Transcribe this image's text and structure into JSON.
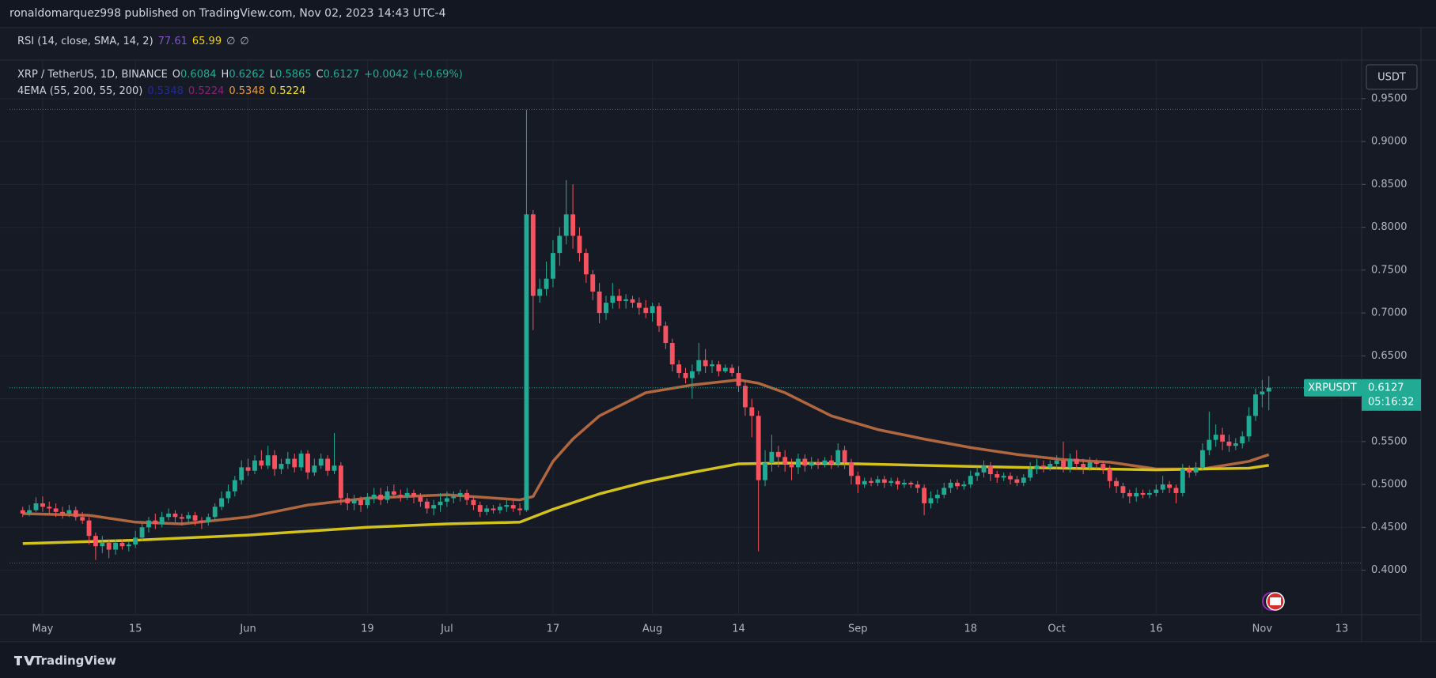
{
  "header": {
    "publisher": "ronaldomarquez998 published on TradingView.com, Nov 02, 2023 14:43 UTC-4"
  },
  "rsi_legend": {
    "title": "RSI (14, close, SMA, 14, 2)",
    "values": [
      {
        "text": 77.61,
        "color": "#7e57c2"
      },
      {
        "text": 65.99,
        "color": "#f5d400"
      },
      {
        "text": "∅",
        "color": "#b2b5be"
      },
      {
        "text": "∅",
        "color": "#b2b5be"
      }
    ]
  },
  "chart_data": {
    "type": "candlestick",
    "title": "XRP / TetherUS, 1D, BINANCE",
    "ohlc_legend": {
      "labels": [
        "O",
        "H",
        "L",
        "C"
      ],
      "values": [
        0.6084,
        0.6262,
        0.5865,
        0.6127
      ],
      "change": "+0.0042",
      "change_pct": "(+0.69%)"
    },
    "indicator": {
      "title": "4EMA (55, 200, 55, 200)",
      "values": [
        {
          "value": 0.5348,
          "color": "#1f2a9e"
        },
        {
          "value": 0.5224,
          "color": "#88237a"
        },
        {
          "value": 0.5348,
          "color": "#f39a2e"
        },
        {
          "value": 0.5224,
          "color": "#f5e61c"
        }
      ]
    },
    "currency": "USDT",
    "symbol_label": "XRPUSDT",
    "last_price": 0.6127,
    "countdown": "05:16:32",
    "up_color": "#22ab94",
    "down_color": "#f7525f",
    "grid": true,
    "x": [
      "2023-04-28",
      "2023-04-29",
      "2023-04-30",
      "2023-05-01",
      "2023-05-02",
      "2023-05-03",
      "2023-05-04",
      "2023-05-05",
      "2023-05-06",
      "2023-05-07",
      "2023-05-08",
      "2023-05-09",
      "2023-05-10",
      "2023-05-11",
      "2023-05-12",
      "2023-05-13",
      "2023-05-14",
      "2023-05-15",
      "2023-05-16",
      "2023-05-17",
      "2023-05-18",
      "2023-05-19",
      "2023-05-20",
      "2023-05-21",
      "2023-05-22",
      "2023-05-23",
      "2023-05-24",
      "2023-05-25",
      "2023-05-26",
      "2023-05-27",
      "2023-05-28",
      "2023-05-29",
      "2023-05-30",
      "2023-05-31",
      "2023-06-01",
      "2023-06-02",
      "2023-06-03",
      "2023-06-04",
      "2023-06-05",
      "2023-06-06",
      "2023-06-07",
      "2023-06-08",
      "2023-06-09",
      "2023-06-10",
      "2023-06-11",
      "2023-06-12",
      "2023-06-13",
      "2023-06-14",
      "2023-06-15",
      "2023-06-16",
      "2023-06-17",
      "2023-06-18",
      "2023-06-19",
      "2023-06-20",
      "2023-06-21",
      "2023-06-22",
      "2023-06-23",
      "2023-06-24",
      "2023-06-25",
      "2023-06-26",
      "2023-06-27",
      "2023-06-28",
      "2023-06-29",
      "2023-06-30",
      "2023-07-01",
      "2023-07-02",
      "2023-07-03",
      "2023-07-04",
      "2023-07-05",
      "2023-07-06",
      "2023-07-07",
      "2023-07-08",
      "2023-07-09",
      "2023-07-10",
      "2023-07-11",
      "2023-07-12",
      "2023-07-13",
      "2023-07-14",
      "2023-07-15",
      "2023-07-16",
      "2023-07-17",
      "2023-07-18",
      "2023-07-19",
      "2023-07-20",
      "2023-07-21",
      "2023-07-22",
      "2023-07-23",
      "2023-07-24",
      "2023-07-25",
      "2023-07-26",
      "2023-07-27",
      "2023-07-28",
      "2023-07-29",
      "2023-07-30",
      "2023-07-31",
      "2023-08-01",
      "2023-08-02",
      "2023-08-03",
      "2023-08-04",
      "2023-08-05",
      "2023-08-06",
      "2023-08-07",
      "2023-08-08",
      "2023-08-09",
      "2023-08-10",
      "2023-08-11",
      "2023-08-12",
      "2023-08-13",
      "2023-08-14",
      "2023-08-15",
      "2023-08-16",
      "2023-08-17",
      "2023-08-18",
      "2023-08-19",
      "2023-08-20",
      "2023-08-21",
      "2023-08-22",
      "2023-08-23",
      "2023-08-24",
      "2023-08-25",
      "2023-08-26",
      "2023-08-27",
      "2023-08-28",
      "2023-08-29",
      "2023-08-30",
      "2023-08-31",
      "2023-09-01",
      "2023-09-02",
      "2023-09-03",
      "2023-09-04",
      "2023-09-05",
      "2023-09-06",
      "2023-09-07",
      "2023-09-08",
      "2023-09-09",
      "2023-09-10",
      "2023-09-11",
      "2023-09-12",
      "2023-09-13",
      "2023-09-14",
      "2023-09-15",
      "2023-09-16",
      "2023-09-17",
      "2023-09-18",
      "2023-09-19",
      "2023-09-20",
      "2023-09-21",
      "2023-09-22",
      "2023-09-23",
      "2023-09-24",
      "2023-09-25",
      "2023-09-26",
      "2023-09-27",
      "2023-09-28",
      "2023-09-29",
      "2023-09-30",
      "2023-10-01",
      "2023-10-02",
      "2023-10-03",
      "2023-10-04",
      "2023-10-05",
      "2023-10-06",
      "2023-10-07",
      "2023-10-08",
      "2023-10-09",
      "2023-10-10",
      "2023-10-11",
      "2023-10-12",
      "2023-10-13",
      "2023-10-14",
      "2023-10-15",
      "2023-10-16",
      "2023-10-17",
      "2023-10-18",
      "2023-10-19",
      "2023-10-20",
      "2023-10-21",
      "2023-10-22",
      "2023-10-23",
      "2023-10-24",
      "2023-10-25",
      "2023-10-26",
      "2023-10-27",
      "2023-10-28",
      "2023-10-29",
      "2023-10-30",
      "2023-10-31",
      "2023-11-01",
      "2023-11-02"
    ],
    "open": [
      0.47,
      0.466,
      0.47,
      0.478,
      0.474,
      0.472,
      0.468,
      0.466,
      0.47,
      0.462,
      0.458,
      0.44,
      0.428,
      0.432,
      0.424,
      0.432,
      0.428,
      0.43,
      0.438,
      0.45,
      0.458,
      0.454,
      0.462,
      0.466,
      0.462,
      0.46,
      0.464,
      0.458,
      0.456,
      0.462,
      0.474,
      0.484,
      0.492,
      0.505,
      0.52,
      0.516,
      0.528,
      0.522,
      0.534,
      0.518,
      0.524,
      0.53,
      0.52,
      0.536,
      0.514,
      0.522,
      0.53,
      0.516,
      0.522,
      0.484,
      0.478,
      0.482,
      0.476,
      0.484,
      0.488,
      0.482,
      0.492,
      0.488,
      0.486,
      0.49,
      0.486,
      0.48,
      0.472,
      0.476,
      0.48,
      0.484,
      0.486,
      0.49,
      0.482,
      0.476,
      0.468,
      0.472,
      0.47,
      0.474,
      0.476,
      0.472,
      0.47,
      0.815,
      0.72,
      0.728,
      0.74,
      0.77,
      0.79,
      0.815,
      0.79,
      0.77,
      0.745,
      0.725,
      0.7,
      0.712,
      0.72,
      0.714,
      0.716,
      0.712,
      0.706,
      0.7,
      0.708,
      0.685,
      0.665,
      0.64,
      0.63,
      0.624,
      0.632,
      0.645,
      0.638,
      0.64,
      0.632,
      0.636,
      0.63,
      0.615,
      0.59,
      0.58,
      0.505,
      0.525,
      0.538,
      0.532,
      0.524,
      0.52,
      0.53,
      0.522,
      0.526,
      0.524,
      0.528,
      0.524,
      0.54,
      0.526,
      0.51,
      0.5,
      0.504,
      0.502,
      0.506,
      0.502,
      0.504,
      0.5,
      0.502,
      0.5,
      0.496,
      0.478,
      0.484,
      0.488,
      0.496,
      0.502,
      0.498,
      0.5,
      0.51,
      0.514,
      0.522,
      0.512,
      0.508,
      0.51,
      0.506,
      0.502,
      0.508,
      0.518,
      0.522,
      0.52,
      0.524,
      0.528,
      0.52,
      0.53,
      0.524,
      0.52,
      0.526,
      0.524,
      0.518,
      0.504,
      0.498,
      0.49,
      0.486,
      0.49,
      0.488,
      0.49,
      0.494,
      0.5,
      0.496,
      0.49,
      0.518,
      0.514,
      0.52,
      0.54,
      0.552,
      0.558,
      0.55,
      0.545,
      0.548,
      0.556,
      0.58,
      0.605,
      0.6084
    ],
    "high": [
      0.474,
      0.476,
      0.485,
      0.486,
      0.48,
      0.478,
      0.474,
      0.476,
      0.474,
      0.468,
      0.462,
      0.444,
      0.44,
      0.436,
      0.436,
      0.436,
      0.434,
      0.446,
      0.455,
      0.462,
      0.466,
      0.468,
      0.472,
      0.47,
      0.466,
      0.468,
      0.468,
      0.462,
      0.466,
      0.478,
      0.492,
      0.5,
      0.51,
      0.528,
      0.53,
      0.534,
      0.54,
      0.545,
      0.54,
      0.53,
      0.538,
      0.536,
      0.54,
      0.54,
      0.53,
      0.536,
      0.534,
      0.56,
      0.526,
      0.49,
      0.488,
      0.486,
      0.49,
      0.496,
      0.496,
      0.498,
      0.5,
      0.494,
      0.496,
      0.494,
      0.49,
      0.484,
      0.482,
      0.49,
      0.492,
      0.492,
      0.494,
      0.494,
      0.486,
      0.48,
      0.476,
      0.476,
      0.478,
      0.482,
      0.482,
      0.478,
      0.937,
      0.82,
      0.74,
      0.76,
      0.785,
      0.8,
      0.855,
      0.85,
      0.8,
      0.775,
      0.75,
      0.735,
      0.72,
      0.735,
      0.728,
      0.722,
      0.72,
      0.718,
      0.715,
      0.712,
      0.712,
      0.69,
      0.67,
      0.645,
      0.636,
      0.64,
      0.665,
      0.658,
      0.645,
      0.644,
      0.64,
      0.64,
      0.638,
      0.62,
      0.6,
      0.586,
      0.54,
      0.558,
      0.545,
      0.54,
      0.53,
      0.536,
      0.535,
      0.532,
      0.53,
      0.532,
      0.534,
      0.548,
      0.545,
      0.53,
      0.515,
      0.508,
      0.508,
      0.51,
      0.51,
      0.508,
      0.508,
      0.506,
      0.504,
      0.504,
      0.5,
      0.492,
      0.494,
      0.502,
      0.506,
      0.506,
      0.504,
      0.516,
      0.52,
      0.528,
      0.526,
      0.516,
      0.514,
      0.514,
      0.51,
      0.512,
      0.526,
      0.53,
      0.528,
      0.528,
      0.534,
      0.55,
      0.536,
      0.54,
      0.53,
      0.532,
      0.53,
      0.528,
      0.522,
      0.508,
      0.502,
      0.494,
      0.496,
      0.494,
      0.494,
      0.5,
      0.51,
      0.504,
      0.5,
      0.524,
      0.522,
      0.526,
      0.548,
      0.585,
      0.57,
      0.566,
      0.558,
      0.554,
      0.562,
      0.59,
      0.612,
      0.622,
      0.6262
    ],
    "low": [
      0.462,
      0.463,
      0.468,
      0.468,
      0.466,
      0.462,
      0.46,
      0.462,
      0.458,
      0.454,
      0.43,
      0.412,
      0.42,
      0.414,
      0.418,
      0.424,
      0.422,
      0.426,
      0.434,
      0.444,
      0.448,
      0.45,
      0.458,
      0.456,
      0.452,
      0.456,
      0.452,
      0.448,
      0.452,
      0.458,
      0.47,
      0.478,
      0.486,
      0.5,
      0.51,
      0.512,
      0.518,
      0.518,
      0.51,
      0.512,
      0.518,
      0.514,
      0.516,
      0.506,
      0.51,
      0.518,
      0.51,
      0.512,
      0.476,
      0.47,
      0.47,
      0.468,
      0.472,
      0.478,
      0.476,
      0.478,
      0.484,
      0.48,
      0.482,
      0.478,
      0.474,
      0.466,
      0.464,
      0.468,
      0.474,
      0.478,
      0.48,
      0.476,
      0.47,
      0.462,
      0.464,
      0.466,
      0.466,
      0.468,
      0.468,
      0.464,
      0.468,
      0.68,
      0.712,
      0.72,
      0.73,
      0.755,
      0.78,
      0.775,
      0.76,
      0.735,
      0.715,
      0.688,
      0.692,
      0.705,
      0.705,
      0.705,
      0.706,
      0.698,
      0.694,
      0.69,
      0.678,
      0.658,
      0.632,
      0.624,
      0.618,
      0.6,
      0.628,
      0.63,
      0.63,
      0.626,
      0.63,
      0.626,
      0.608,
      0.58,
      0.555,
      0.422,
      0.498,
      0.515,
      0.52,
      0.515,
      0.505,
      0.512,
      0.515,
      0.518,
      0.518,
      0.52,
      0.518,
      0.52,
      0.518,
      0.5,
      0.49,
      0.496,
      0.498,
      0.498,
      0.496,
      0.498,
      0.494,
      0.496,
      0.496,
      0.49,
      0.464,
      0.472,
      0.478,
      0.484,
      0.49,
      0.494,
      0.494,
      0.496,
      0.504,
      0.508,
      0.504,
      0.502,
      0.504,
      0.5,
      0.498,
      0.498,
      0.504,
      0.512,
      0.514,
      0.516,
      0.518,
      0.514,
      0.514,
      0.518,
      0.512,
      0.516,
      0.518,
      0.512,
      0.496,
      0.49,
      0.484,
      0.478,
      0.48,
      0.484,
      0.484,
      0.486,
      0.49,
      0.49,
      0.478,
      0.486,
      0.508,
      0.51,
      0.516,
      0.534,
      0.544,
      0.54,
      0.538,
      0.54,
      0.542,
      0.55,
      0.574,
      0.59,
      0.5865
    ],
    "close": [
      0.466,
      0.47,
      0.478,
      0.474,
      0.472,
      0.468,
      0.466,
      0.47,
      0.462,
      0.458,
      0.44,
      0.428,
      0.432,
      0.424,
      0.432,
      0.428,
      0.43,
      0.438,
      0.45,
      0.458,
      0.454,
      0.462,
      0.466,
      0.462,
      0.46,
      0.464,
      0.458,
      0.456,
      0.462,
      0.474,
      0.484,
      0.492,
      0.505,
      0.52,
      0.516,
      0.528,
      0.522,
      0.534,
      0.518,
      0.524,
      0.53,
      0.52,
      0.536,
      0.514,
      0.522,
      0.53,
      0.516,
      0.522,
      0.484,
      0.478,
      0.482,
      0.476,
      0.484,
      0.488,
      0.482,
      0.492,
      0.488,
      0.486,
      0.49,
      0.486,
      0.48,
      0.472,
      0.476,
      0.48,
      0.484,
      0.486,
      0.49,
      0.482,
      0.476,
      0.468,
      0.472,
      0.47,
      0.474,
      0.476,
      0.472,
      0.47,
      0.815,
      0.72,
      0.728,
      0.74,
      0.77,
      0.79,
      0.815,
      0.79,
      0.77,
      0.745,
      0.725,
      0.7,
      0.712,
      0.72,
      0.714,
      0.716,
      0.712,
      0.706,
      0.7,
      0.708,
      0.685,
      0.665,
      0.64,
      0.63,
      0.624,
      0.632,
      0.645,
      0.638,
      0.64,
      0.632,
      0.636,
      0.63,
      0.615,
      0.59,
      0.58,
      0.505,
      0.525,
      0.538,
      0.532,
      0.524,
      0.52,
      0.53,
      0.522,
      0.526,
      0.524,
      0.528,
      0.524,
      0.54,
      0.526,
      0.51,
      0.5,
      0.504,
      0.502,
      0.506,
      0.502,
      0.504,
      0.5,
      0.502,
      0.5,
      0.496,
      0.478,
      0.484,
      0.488,
      0.496,
      0.502,
      0.498,
      0.5,
      0.51,
      0.514,
      0.522,
      0.512,
      0.508,
      0.51,
      0.506,
      0.502,
      0.508,
      0.518,
      0.522,
      0.52,
      0.524,
      0.528,
      0.52,
      0.53,
      0.524,
      0.52,
      0.526,
      0.524,
      0.518,
      0.504,
      0.498,
      0.49,
      0.486,
      0.49,
      0.488,
      0.49,
      0.494,
      0.5,
      0.496,
      0.49,
      0.518,
      0.514,
      0.52,
      0.54,
      0.552,
      0.558,
      0.55,
      0.545,
      0.548,
      0.556,
      0.58,
      0.605,
      0.6084,
      0.6127
    ],
    "ema_series": [
      {
        "color": "#b0673f",
        "x": [
          "2023-04-28",
          "2023-05-08",
          "2023-05-15",
          "2023-05-22",
          "2023-06-01",
          "2023-06-10",
          "2023-06-19",
          "2023-07-01",
          "2023-07-12",
          "2023-07-14",
          "2023-07-17",
          "2023-07-20",
          "2023-07-24",
          "2023-07-31",
          "2023-08-07",
          "2023-08-14",
          "2023-08-17",
          "2023-08-21",
          "2023-08-28",
          "2023-09-04",
          "2023-09-11",
          "2023-09-18",
          "2023-09-25",
          "2023-10-02",
          "2023-10-09",
          "2023-10-16",
          "2023-10-23",
          "2023-10-30",
          "2023-11-02"
        ],
        "values": [
          0.466,
          0.464,
          0.456,
          0.454,
          0.462,
          0.476,
          0.484,
          0.488,
          0.482,
          0.486,
          0.527,
          0.553,
          0.58,
          0.607,
          0.616,
          0.622,
          0.618,
          0.607,
          0.58,
          0.564,
          0.553,
          0.543,
          0.535,
          0.529,
          0.526,
          0.518,
          0.518,
          0.527,
          0.5348
        ]
      },
      {
        "color": "#d4c21c",
        "x": [
          "2023-04-28",
          "2023-05-15",
          "2023-06-01",
          "2023-06-19",
          "2023-07-01",
          "2023-07-12",
          "2023-07-17",
          "2023-07-24",
          "2023-07-31",
          "2023-08-07",
          "2023-08-14",
          "2023-08-21",
          "2023-09-01",
          "2023-09-18",
          "2023-10-02",
          "2023-10-16",
          "2023-10-23",
          "2023-10-30",
          "2023-11-02"
        ],
        "values": [
          0.431,
          0.435,
          0.441,
          0.45,
          0.454,
          0.456,
          0.471,
          0.489,
          0.503,
          0.514,
          0.524,
          0.525,
          0.524,
          0.521,
          0.519,
          0.517,
          0.518,
          0.519,
          0.5224
        ]
      }
    ],
    "range_lines": [
      0.9375,
      0.4085
    ],
    "xlim": [
      "2023-04-26",
      "2023-11-16"
    ],
    "xticks": [
      {
        "value": "2023-05-01",
        "label": "May"
      },
      {
        "value": "2023-05-15",
        "label": "15"
      },
      {
        "value": "2023-06-01",
        "label": "Jun"
      },
      {
        "value": "2023-06-19",
        "label": "19"
      },
      {
        "value": "2023-07-01",
        "label": "Jul"
      },
      {
        "value": "2023-07-17",
        "label": "17"
      },
      {
        "value": "2023-08-01",
        "label": "Aug"
      },
      {
        "value": "2023-08-14",
        "label": "14"
      },
      {
        "value": "2023-09-01",
        "label": "Sep"
      },
      {
        "value": "2023-09-18",
        "label": "18"
      },
      {
        "value": "2023-10-01",
        "label": "Oct"
      },
      {
        "value": "2023-10-16",
        "label": "16"
      },
      {
        "value": "2023-11-01",
        "label": "Nov"
      },
      {
        "value": "2023-11-13",
        "label": "13"
      }
    ],
    "ylim": [
      0.348,
      0.995
    ],
    "yticks": [
      {
        "value": 0.4,
        "label": "0.4000"
      },
      {
        "value": 0.45,
        "label": "0.4500"
      },
      {
        "value": 0.5,
        "label": "0.5000"
      },
      {
        "value": 0.55,
        "label": "0.5500"
      },
      {
        "value": 0.6,
        "label": "0.6000"
      },
      {
        "value": 0.65,
        "label": "0.6500"
      },
      {
        "value": 0.7,
        "label": "0.7000"
      },
      {
        "value": 0.75,
        "label": "0.7500"
      },
      {
        "value": 0.8,
        "label": "0.8000"
      },
      {
        "value": 0.85,
        "label": "0.8500"
      },
      {
        "value": 0.9,
        "label": "0.9000"
      },
      {
        "value": 0.95,
        "label": "0.9500"
      }
    ]
  },
  "footer": {
    "brand": "TradingView"
  }
}
